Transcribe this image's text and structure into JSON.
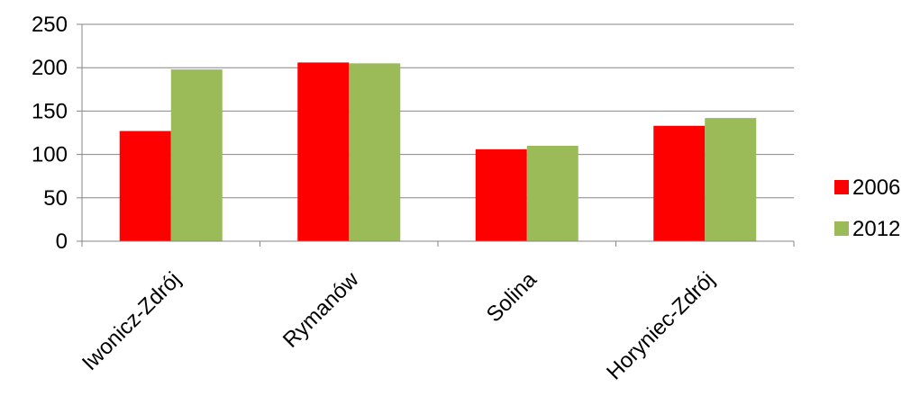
{
  "chart_data": {
    "type": "bar",
    "categories": [
      "Iwonicz-Zdrój",
      "Rymanów",
      "Solina",
      "Horyniec-Zdrój"
    ],
    "series": [
      {
        "name": "2006",
        "values": [
          127,
          206,
          106,
          133
        ],
        "color": "#ff0000"
      },
      {
        "name": "2012",
        "values": [
          198,
          205,
          110,
          142
        ],
        "color": "#9bbb59"
      }
    ],
    "ylim": [
      0,
      250
    ],
    "yticks": [
      0,
      50,
      100,
      150,
      200,
      250
    ],
    "grid": true,
    "legend_position": "right"
  }
}
